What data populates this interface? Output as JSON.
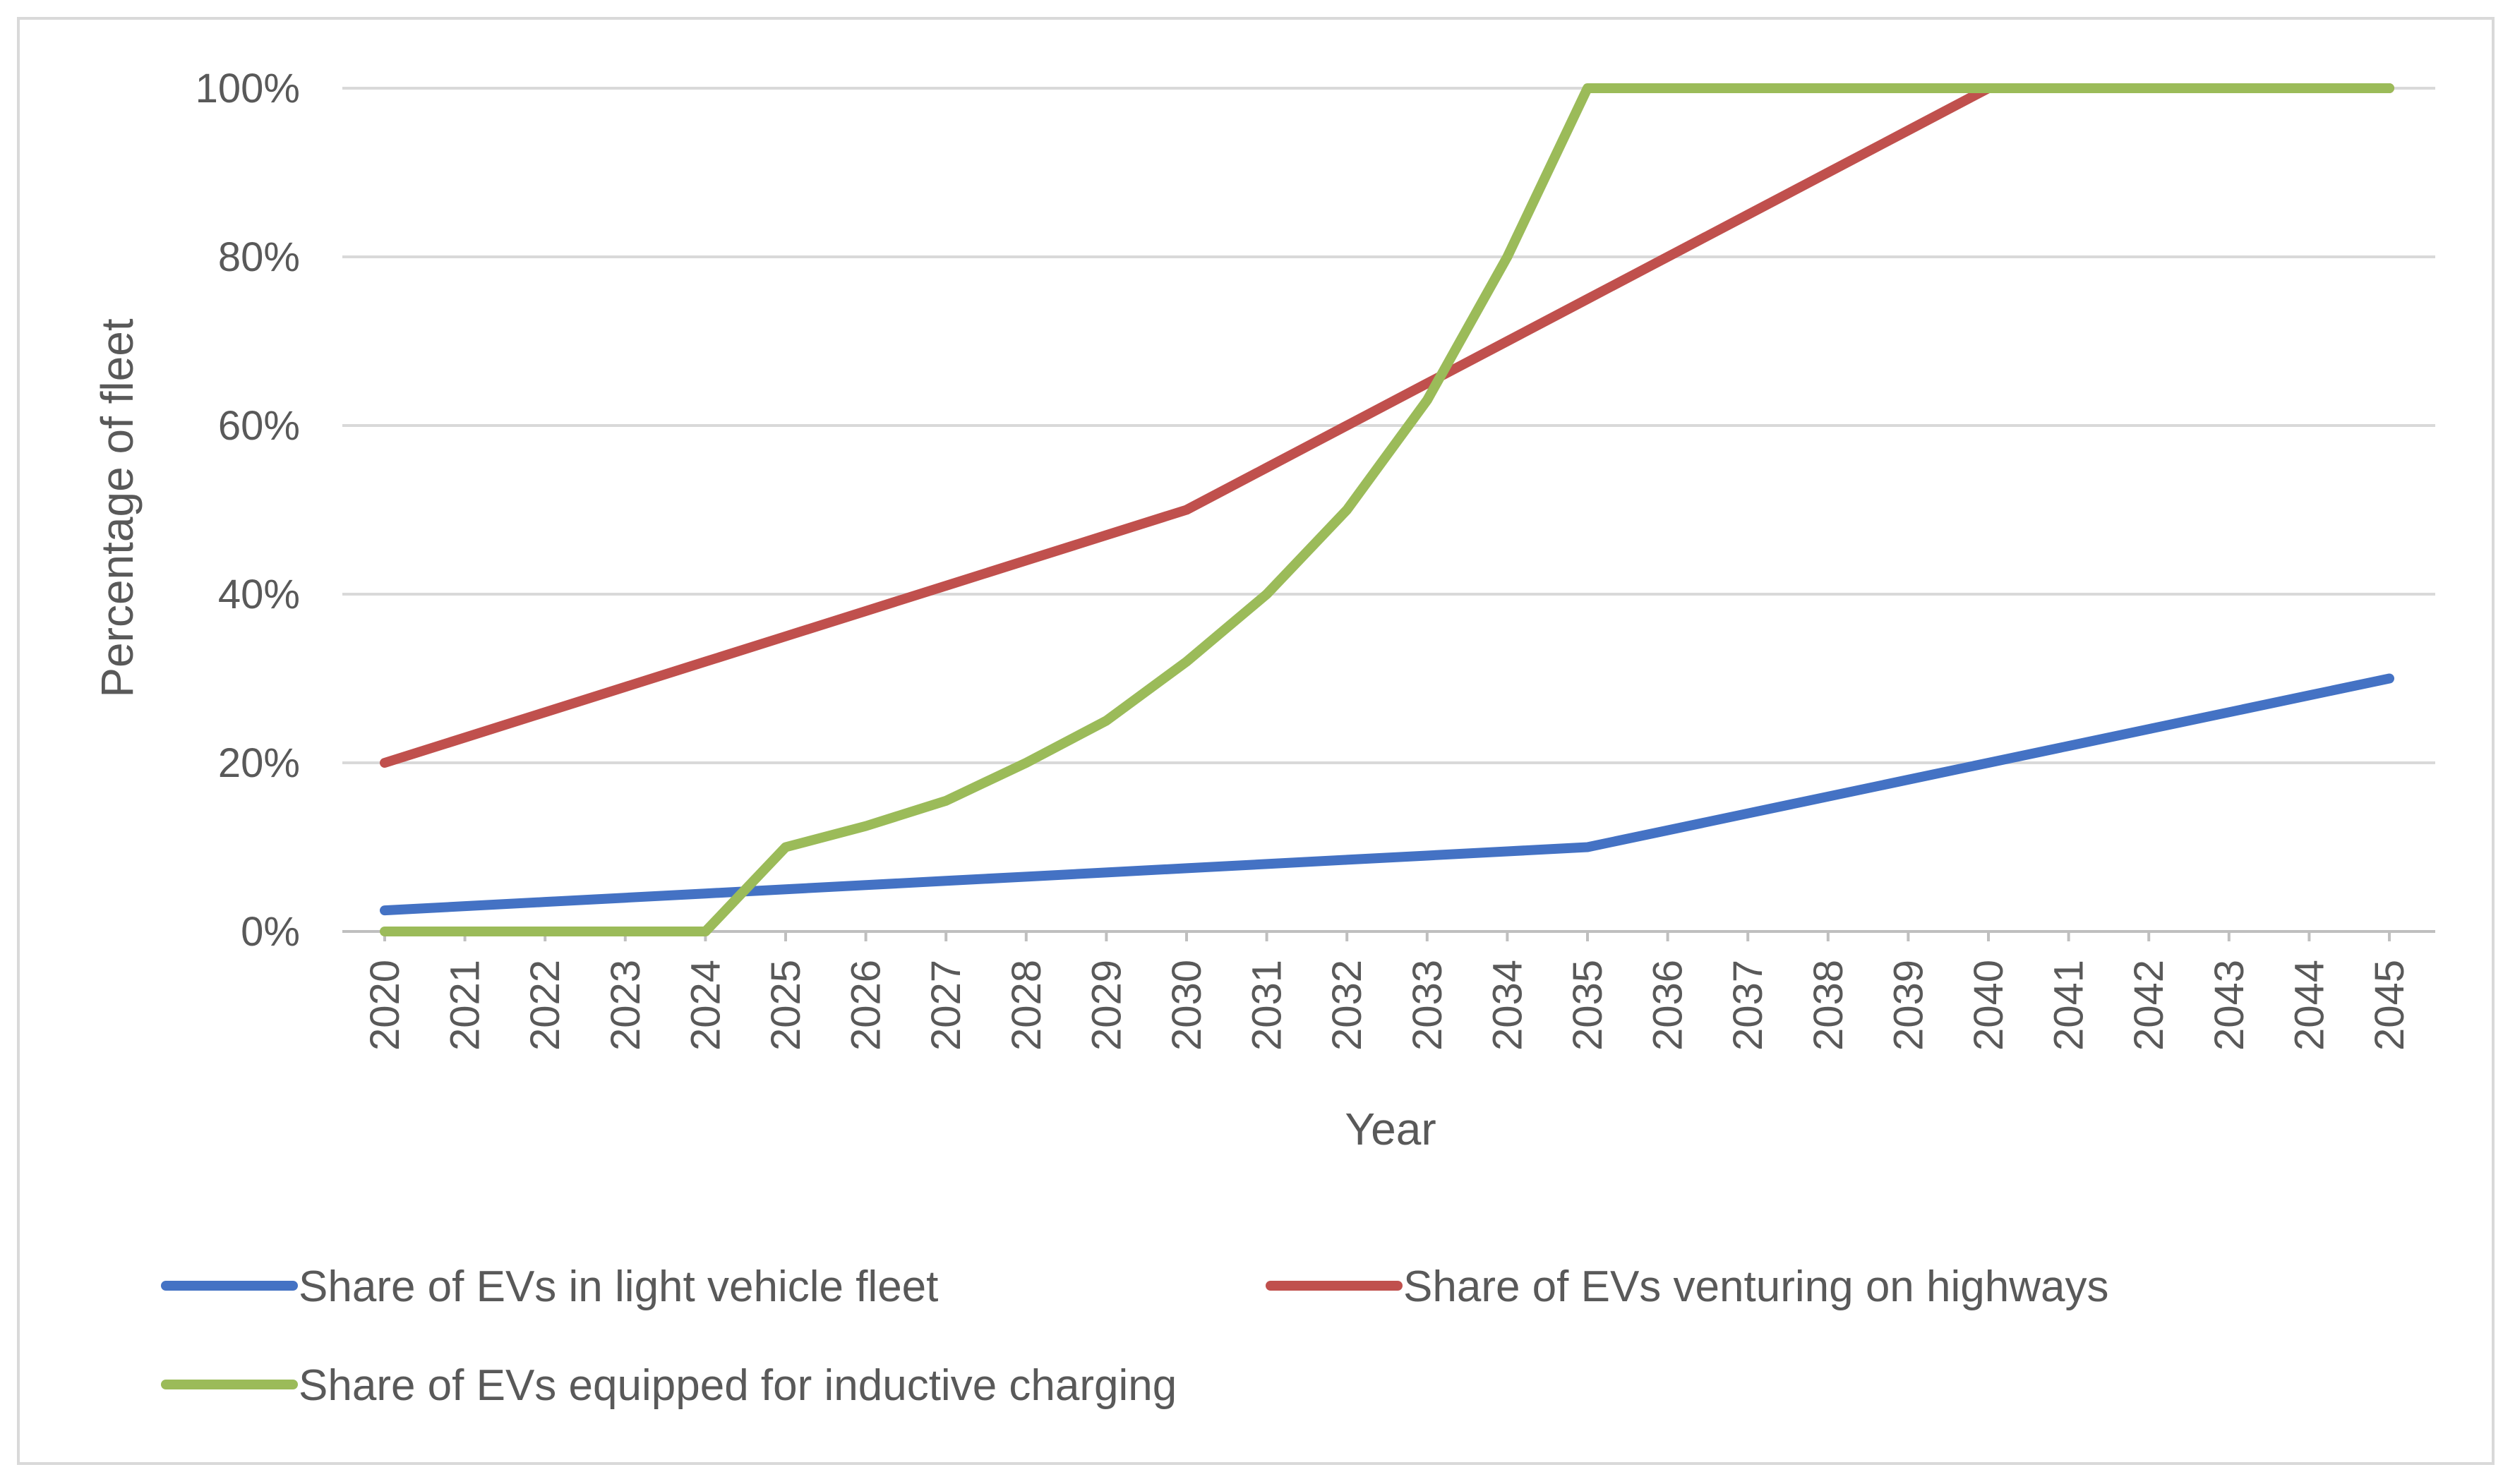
{
  "chart_data": {
    "type": "line",
    "title": "",
    "xlabel": "Year",
    "ylabel": "Percentage of fleet",
    "ylim": [
      0,
      100
    ],
    "yticks": [
      0,
      20,
      40,
      60,
      80,
      100
    ],
    "ytick_labels": [
      "0%",
      "20%",
      "40%",
      "60%",
      "80%",
      "100%"
    ],
    "grid": true,
    "legend_position": "bottom",
    "categories": [
      "2020",
      "2021",
      "2022",
      "2023",
      "2024",
      "2025",
      "2026",
      "2027",
      "2028",
      "2029",
      "2030",
      "2031",
      "2032",
      "2033",
      "2034",
      "2035",
      "2036",
      "2037",
      "2038",
      "2039",
      "2040",
      "2041",
      "2042",
      "2043",
      "2044",
      "2045"
    ],
    "series": [
      {
        "name": "Share of EVs in light vehicle fleet",
        "color": "#4472c4",
        "values": [
          2.5,
          3,
          3.5,
          4,
          4.5,
          5,
          5.5,
          6,
          6.5,
          7,
          7.5,
          8,
          8.5,
          9,
          9.5,
          10,
          12,
          14,
          16,
          18,
          20,
          22,
          24,
          26,
          28,
          30
        ]
      },
      {
        "name": "Share of EVs venturing on highways",
        "color": "#c0504d",
        "values": [
          20,
          23,
          26,
          29,
          32,
          35,
          38,
          41,
          44,
          47,
          50,
          55,
          60,
          65,
          70,
          75,
          80,
          85,
          90,
          95,
          100,
          100,
          100,
          100,
          100,
          100
        ]
      },
      {
        "name": "Share of EVs equipped for inductive charging",
        "color": "#9bbb59",
        "values": [
          0,
          0,
          0,
          0,
          0,
          10,
          12.5,
          15.5,
          20,
          25,
          32,
          40,
          50,
          63,
          80,
          100,
          100,
          100,
          100,
          100,
          100,
          100,
          100,
          100,
          100,
          100
        ]
      }
    ]
  }
}
